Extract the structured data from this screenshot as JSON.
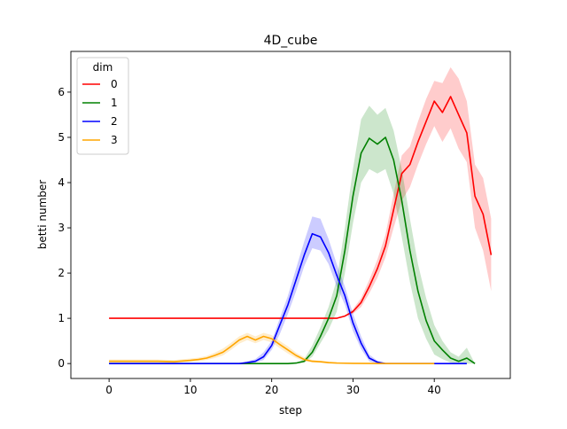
{
  "chart_data": {
    "type": "line",
    "title": "4D_cube",
    "xlabel": "step",
    "ylabel": "betti number",
    "xlim": [
      -4.7,
      49.35
    ],
    "ylim": [
      -0.33,
      6.9
    ],
    "xticks": [
      0,
      10,
      20,
      30,
      40
    ],
    "yticks": [
      0,
      1,
      2,
      3,
      4,
      5,
      6
    ],
    "grid": false,
    "legend": {
      "title": "dim",
      "placement": "top-left"
    },
    "series": [
      {
        "name": "0",
        "color": "#ff0000",
        "x": [
          0,
          10,
          20,
          25,
          27,
          28,
          29,
          30,
          31,
          32,
          33,
          34,
          35,
          36,
          37,
          38,
          39,
          40,
          41,
          42,
          43,
          44,
          45,
          46,
          47
        ],
        "y": [
          1,
          1,
          1,
          1,
          1,
          1,
          1.05,
          1.15,
          1.35,
          1.7,
          2.1,
          2.6,
          3.4,
          4.2,
          4.4,
          4.9,
          5.35,
          5.8,
          5.55,
          5.9,
          5.5,
          5.1,
          3.7,
          3.3,
          2.4
        ],
        "lower": [
          1,
          1,
          1,
          1,
          1,
          1,
          1.05,
          1.1,
          1.25,
          1.55,
          1.9,
          2.35,
          3.0,
          3.6,
          3.9,
          4.4,
          4.85,
          5.25,
          4.9,
          5.2,
          4.75,
          4.45,
          3.0,
          2.5,
          1.6
        ],
        "upper": [
          1,
          1,
          1,
          1,
          1,
          1,
          1.05,
          1.2,
          1.45,
          1.85,
          2.3,
          2.85,
          3.75,
          4.6,
          4.8,
          5.35,
          5.85,
          6.25,
          6.2,
          6.55,
          6.3,
          5.8,
          4.4,
          4.1,
          3.2
        ]
      },
      {
        "name": "1",
        "color": "#008000",
        "x": [
          0,
          10,
          20,
          22,
          23,
          24,
          25,
          26,
          27,
          28,
          29,
          30,
          31,
          32,
          33,
          34,
          35,
          36,
          37,
          38,
          39,
          40,
          41,
          42,
          43,
          44,
          45
        ],
        "y": [
          0,
          0,
          0,
          0,
          0.01,
          0.05,
          0.25,
          0.6,
          1.0,
          1.5,
          2.5,
          3.7,
          4.65,
          4.98,
          4.85,
          5.0,
          4.5,
          3.6,
          2.5,
          1.6,
          0.95,
          0.5,
          0.3,
          0.12,
          0.05,
          0.12,
          0
        ],
        "lower": [
          0,
          0,
          0,
          0,
          0,
          0.02,
          0.15,
          0.45,
          0.75,
          1.15,
          2.0,
          3.1,
          4.0,
          4.3,
          4.2,
          4.3,
          3.75,
          2.8,
          1.8,
          1.0,
          0.55,
          0.2,
          0.1,
          0.02,
          0,
          0,
          0
        ],
        "upper": [
          0,
          0,
          0,
          0,
          0.02,
          0.1,
          0.4,
          0.8,
          1.25,
          1.85,
          3.0,
          4.3,
          5.4,
          5.7,
          5.5,
          5.65,
          5.15,
          4.3,
          3.2,
          2.2,
          1.45,
          0.85,
          0.5,
          0.25,
          0.15,
          0.35,
          0
        ]
      },
      {
        "name": "2",
        "color": "#0000ff",
        "x": [
          0,
          10,
          15,
          16,
          17,
          18,
          19,
          20,
          21,
          22,
          23,
          24,
          25,
          26,
          27,
          28,
          29,
          30,
          31,
          32,
          33,
          34,
          35,
          36,
          40,
          44
        ],
        "y": [
          0,
          0,
          0,
          0,
          0.02,
          0.05,
          0.15,
          0.4,
          0.85,
          1.3,
          1.85,
          2.4,
          2.87,
          2.8,
          2.45,
          1.95,
          1.5,
          0.9,
          0.45,
          0.12,
          0.03,
          0,
          0,
          0,
          0,
          0
        ],
        "lower": [
          0,
          0,
          0,
          0,
          0,
          0.02,
          0.08,
          0.3,
          0.65,
          1.1,
          1.6,
          2.15,
          2.55,
          2.5,
          2.2,
          1.7,
          1.3,
          0.72,
          0.32,
          0.05,
          0,
          0,
          0,
          0,
          0,
          0
        ],
        "upper": [
          0,
          0,
          0,
          0,
          0.05,
          0.1,
          0.25,
          0.5,
          1.0,
          1.5,
          2.1,
          2.7,
          3.25,
          3.2,
          2.75,
          2.2,
          1.7,
          1.1,
          0.6,
          0.2,
          0.06,
          0,
          0,
          0,
          0,
          0
        ]
      },
      {
        "name": "3",
        "color": "#ffa500",
        "x": [
          0,
          2,
          4,
          6,
          8,
          10,
          11,
          12,
          13,
          14,
          15,
          16,
          17,
          18,
          19,
          20,
          21,
          22,
          23,
          24,
          25,
          26,
          27,
          28,
          30,
          35,
          40
        ],
        "y": [
          0.05,
          0.05,
          0.05,
          0.05,
          0.04,
          0.07,
          0.09,
          0.12,
          0.18,
          0.25,
          0.38,
          0.52,
          0.6,
          0.52,
          0.6,
          0.55,
          0.42,
          0.3,
          0.18,
          0.09,
          0.05,
          0.04,
          0.02,
          0.01,
          0.005,
          0,
          0
        ],
        "lower": [
          0.01,
          0.01,
          0.01,
          0.01,
          0.01,
          0.04,
          0.05,
          0.08,
          0.12,
          0.18,
          0.3,
          0.44,
          0.52,
          0.45,
          0.52,
          0.47,
          0.34,
          0.22,
          0.12,
          0.05,
          0.02,
          0.01,
          0,
          0,
          0,
          0,
          0
        ],
        "upper": [
          0.09,
          0.09,
          0.09,
          0.09,
          0.08,
          0.11,
          0.13,
          0.17,
          0.24,
          0.33,
          0.46,
          0.6,
          0.68,
          0.6,
          0.68,
          0.63,
          0.5,
          0.38,
          0.24,
          0.14,
          0.08,
          0.06,
          0.04,
          0.02,
          0.01,
          0,
          0
        ]
      }
    ]
  }
}
